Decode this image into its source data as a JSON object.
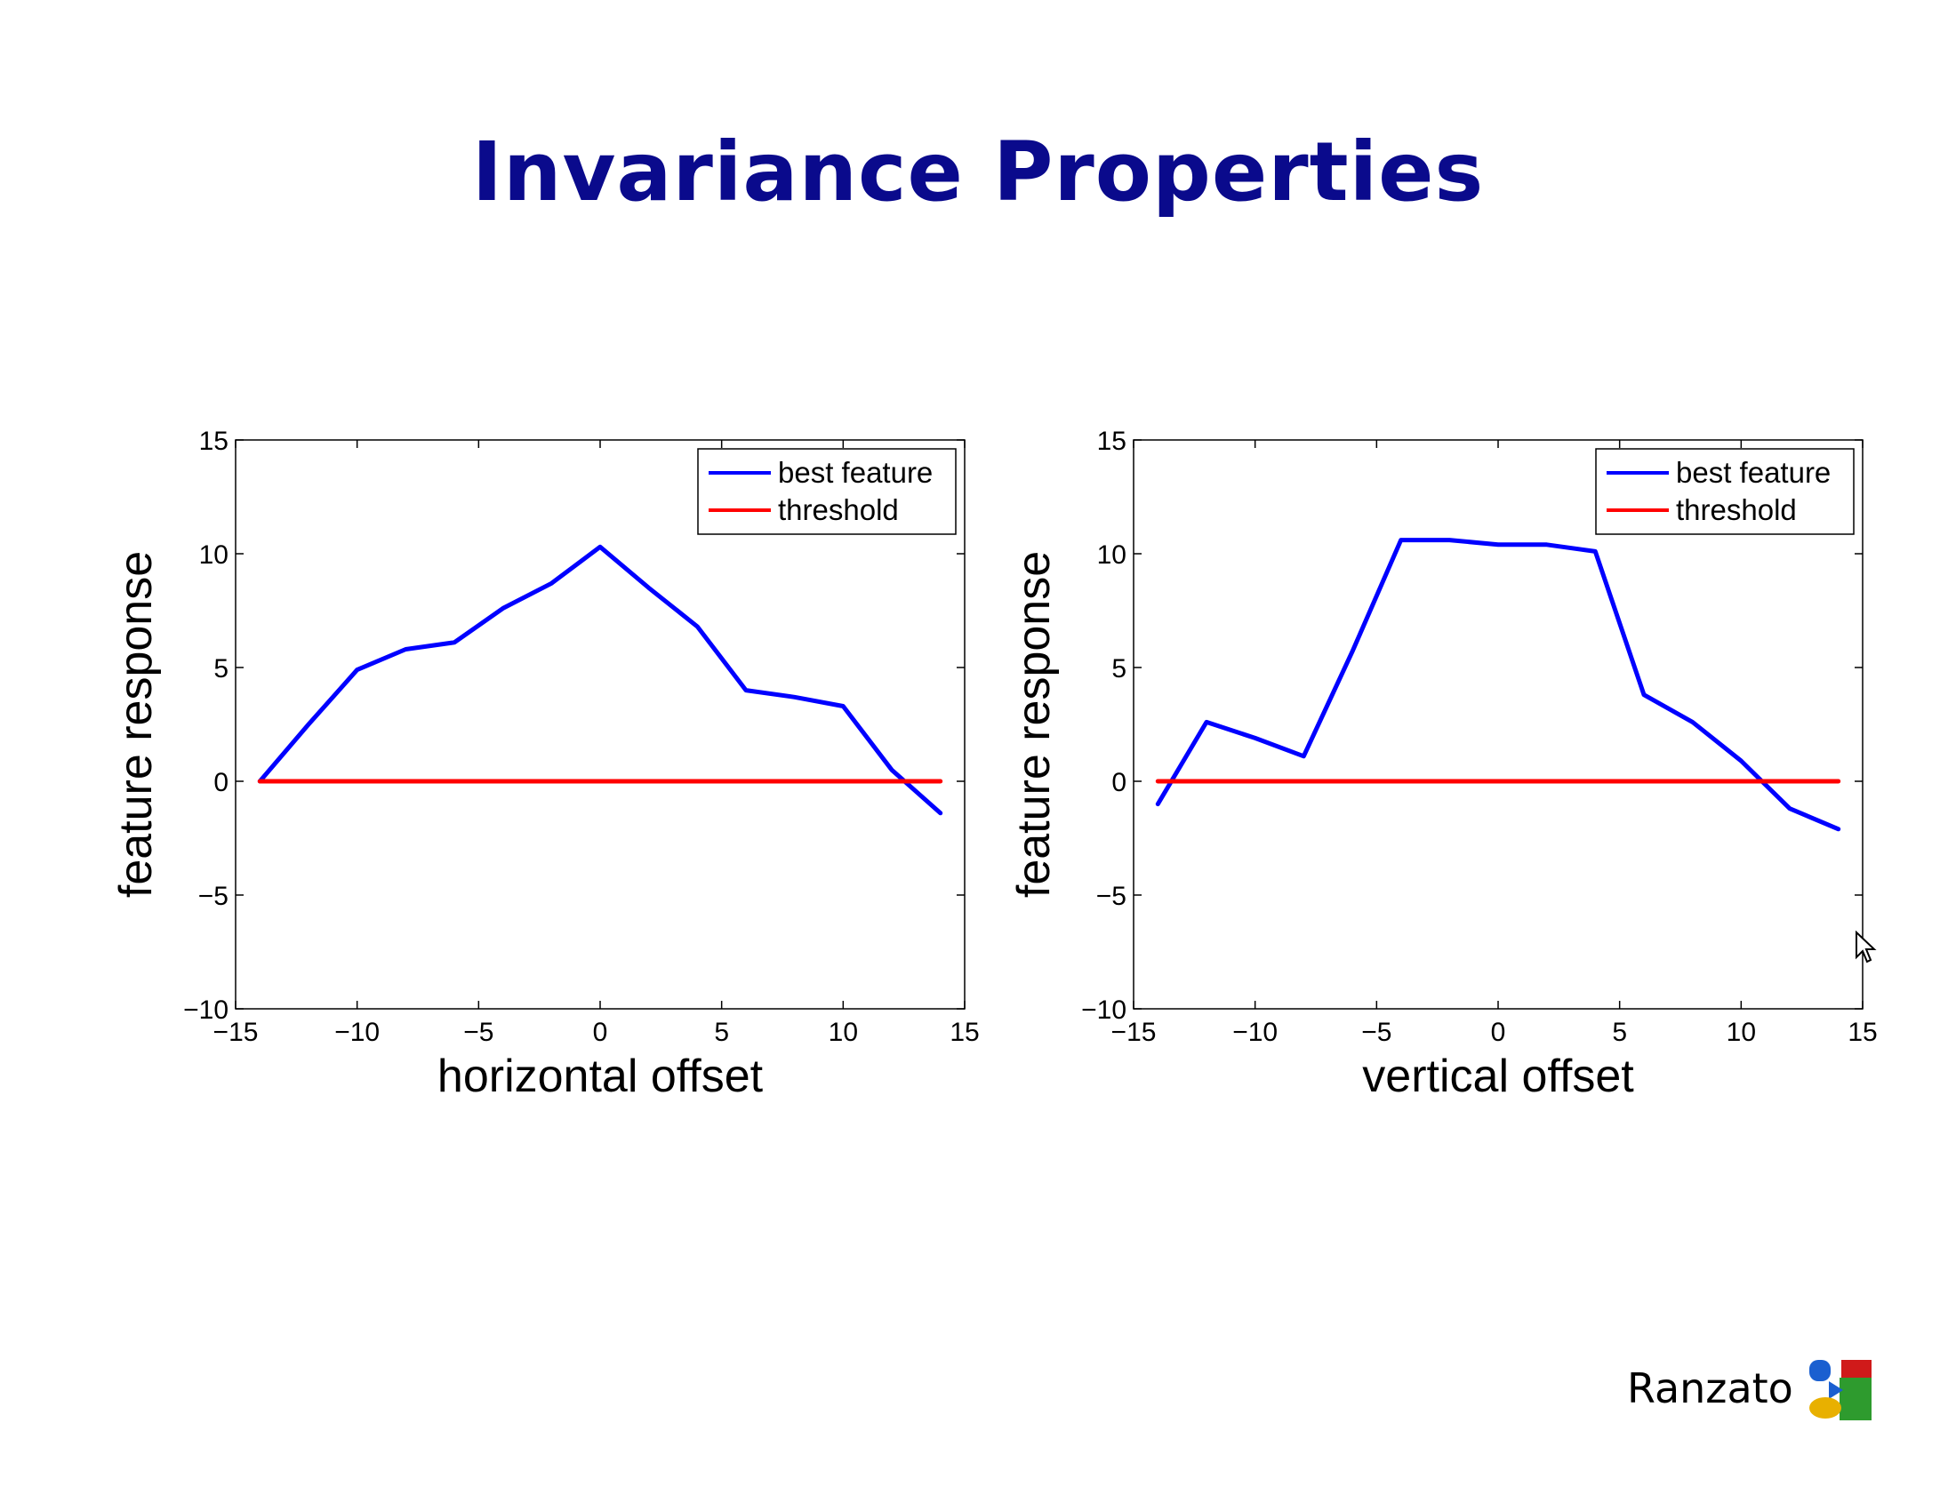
{
  "slide": {
    "title": "Invariance Properties",
    "author": "Ranzato"
  },
  "colors": {
    "title": "#0a0a8c",
    "series_best": "#0000ff",
    "series_threshold": "#ff0000"
  },
  "icons": [
    "logo-icon",
    "mouse-cursor-icon"
  ],
  "chart_data": [
    {
      "type": "line",
      "xlabel": "horizontal offset",
      "ylabel": "feature response",
      "xlim": [
        -15,
        15
      ],
      "ylim": [
        -10,
        15
      ],
      "xticks": [
        "−15",
        "−10",
        "−5",
        "0",
        "5",
        "10",
        "15"
      ],
      "yticks": [
        "−10",
        "−5",
        "0",
        "5",
        "10",
        "15"
      ],
      "grid": false,
      "legend": "top-right",
      "series": [
        {
          "name": "best feature",
          "x": [
            -14,
            -12,
            -10,
            -8,
            -6,
            -4,
            -2,
            0,
            2,
            4,
            6,
            8,
            10,
            12,
            14
          ],
          "y": [
            0,
            2.5,
            4.9,
            5.8,
            6.1,
            7.6,
            8.7,
            10.3,
            8.5,
            6.8,
            4.0,
            3.7,
            3.3,
            0.5,
            -1.4
          ]
        },
        {
          "name": "threshold",
          "x": [
            -14,
            14
          ],
          "y": [
            0,
            0
          ]
        }
      ]
    },
    {
      "type": "line",
      "xlabel": "vertical offset",
      "ylabel": "feature response",
      "xlim": [
        -15,
        15
      ],
      "ylim": [
        -10,
        15
      ],
      "xticks": [
        "−15",
        "−10",
        "−5",
        "0",
        "5",
        "10",
        "15"
      ],
      "yticks": [
        "−10",
        "−5",
        "0",
        "5",
        "10",
        "15"
      ],
      "grid": false,
      "legend": "top-right",
      "series": [
        {
          "name": "best feature",
          "x": [
            -14,
            -12,
            -10,
            -8,
            -6,
            -4,
            -2,
            0,
            2,
            4,
            6,
            8,
            10,
            12,
            14
          ],
          "y": [
            -1.0,
            2.6,
            1.9,
            1.1,
            5.7,
            10.6,
            10.6,
            10.4,
            10.4,
            10.1,
            3.8,
            2.6,
            0.9,
            -1.2,
            -2.1
          ]
        },
        {
          "name": "threshold",
          "x": [
            -14,
            14
          ],
          "y": [
            0,
            0
          ]
        }
      ]
    }
  ]
}
